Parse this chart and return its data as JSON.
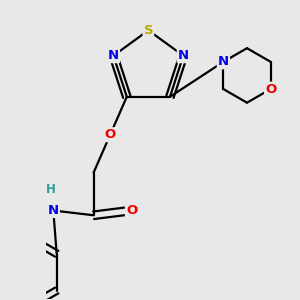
{
  "background_color": "#e8e8e8",
  "atom_colors": {
    "C": "#000000",
    "N": "#0000ee",
    "O": "#ee0000",
    "S": "#bbaa00",
    "H": "#339999"
  },
  "figsize": [
    3.0,
    3.0
  ],
  "dpi": 100,
  "lw": 1.6,
  "fontsize": 9.5
}
